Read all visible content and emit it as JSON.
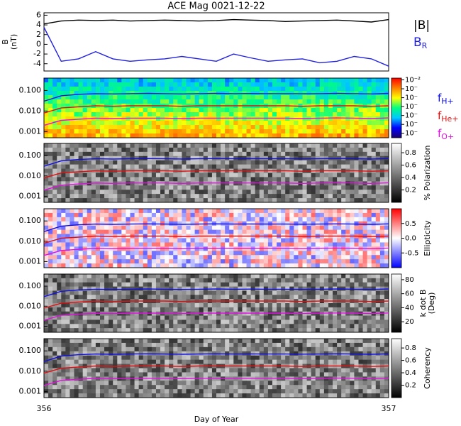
{
  "chart_data": [
    {
      "type": "line",
      "title": "ACE Mag 0021-12-22",
      "ylabel": "B\n(nT)",
      "x": [
        356,
        356.05,
        356.1,
        356.15,
        356.2,
        356.25,
        356.3,
        356.35,
        356.4,
        356.45,
        356.5,
        356.55,
        356.6,
        356.65,
        356.7,
        356.75,
        356.8,
        356.85,
        356.9,
        356.95,
        357
      ],
      "xlim": [
        356,
        357
      ],
      "ylim": [
        -5.5,
        6.5
      ],
      "yticks": [
        -4,
        -2,
        0,
        2,
        4,
        6
      ],
      "series": [
        {
          "name": "|B|",
          "color": "#000000",
          "values": [
            4.2,
            4.8,
            5.0,
            4.9,
            5.0,
            4.8,
            4.9,
            5.0,
            4.9,
            4.8,
            4.9,
            5.1,
            5.0,
            4.9,
            4.7,
            4.8,
            4.9,
            5.0,
            4.8,
            4.6,
            5.1
          ]
        },
        {
          "name": "B",
          "name_sub": "R",
          "color": "#2020e0",
          "values": [
            3.5,
            -3.5,
            -3.0,
            -1.5,
            -3.0,
            -3.5,
            -3.2,
            -3.0,
            -2.5,
            -3.0,
            -3.5,
            -2.0,
            -2.8,
            -3.5,
            -3.2,
            -3.0,
            -3.8,
            -3.5,
            -2.5,
            -3.0,
            -4.5
          ]
        }
      ]
    },
    {
      "type": "spectrogram",
      "log_y": true,
      "colormap": [
        "#1a0070",
        "#0000ff",
        "#00c8ff",
        "#00ff80",
        "#ffff00",
        "#ff8000",
        "#ff0000"
      ],
      "x": [
        356,
        356.05,
        356.1,
        356.15,
        356.2,
        356.25,
        356.3,
        356.35,
        356.4,
        356.45,
        356.5,
        356.55,
        356.6,
        356.65,
        356.7,
        356.75,
        356.8,
        356.85,
        356.9,
        356.95,
        357
      ],
      "xlim": [
        356,
        357
      ],
      "ylim": [
        0.0005,
        0.4
      ],
      "yticks": [
        {
          "value": 0.1,
          "label": "0.100"
        },
        {
          "value": 0.01,
          "label": "0.010"
        },
        {
          "value": 0.001,
          "label": "0.001"
        }
      ],
      "zlim": [
        -8.5,
        -1.8
      ],
      "zticks": [
        {
          "value": -2,
          "label": "10⁻²"
        },
        {
          "value": -3,
          "label": "10⁻"
        },
        {
          "value": -4,
          "label": "10⁻"
        },
        {
          "value": -5,
          "label": "10⁻"
        },
        {
          "value": -6,
          "label": "10⁻"
        },
        {
          "value": -7,
          "label": "10⁻"
        },
        {
          "value": -8,
          "label": "10⁻"
        }
      ],
      "legend": true,
      "series": [
        {
          "name": "f",
          "name_sub": "H+",
          "color": "#1010e0",
          "values": [
            0.03,
            0.055,
            0.065,
            0.07,
            0.068,
            0.07,
            0.072,
            0.07,
            0.068,
            0.07,
            0.072,
            0.07,
            0.071,
            0.07,
            0.07,
            0.069,
            0.07,
            0.072,
            0.07,
            0.068,
            0.072
          ]
        },
        {
          "name": "f",
          "name_sub": "He+",
          "color": "#e01010",
          "values": [
            0.008,
            0.014,
            0.016,
            0.018,
            0.017,
            0.018,
            0.018,
            0.018,
            0.017,
            0.018,
            0.018,
            0.018,
            0.018,
            0.018,
            0.018,
            0.017,
            0.018,
            0.018,
            0.018,
            0.017,
            0.018
          ]
        },
        {
          "name": "f",
          "name_sub": "O+",
          "color": "#e010e0",
          "values": [
            0.002,
            0.0035,
            0.004,
            0.0045,
            0.0043,
            0.0045,
            0.0045,
            0.0045,
            0.0043,
            0.0045,
            0.0045,
            0.0045,
            0.0045,
            0.0045,
            0.0045,
            0.0043,
            0.0045,
            0.0046,
            0.0045,
            0.0043,
            0.0046
          ]
        }
      ]
    },
    {
      "type": "spectrogram",
      "log_y": true,
      "colormap": [
        "#000000",
        "#ffffff"
      ],
      "zlabel": "% Polarization",
      "x": [
        356,
        356.05,
        356.1,
        356.15,
        356.2,
        356.25,
        356.3,
        356.35,
        356.4,
        356.45,
        356.5,
        356.55,
        356.6,
        356.65,
        356.7,
        356.75,
        356.8,
        356.85,
        356.9,
        356.95,
        357
      ],
      "xlim": [
        356,
        357
      ],
      "ylim": [
        0.0005,
        0.4
      ],
      "yticks": [
        {
          "value": 0.1,
          "label": "0.100"
        },
        {
          "value": 0.01,
          "label": "0.010"
        },
        {
          "value": 0.001,
          "label": "0.001"
        }
      ],
      "zlim": [
        0,
        0.95
      ],
      "zticks": [
        0.2,
        0.4,
        0.6,
        0.8
      ],
      "series": [
        {
          "color": "#1010e0",
          "values": [
            0.03,
            0.055,
            0.065,
            0.07,
            0.068,
            0.07,
            0.072,
            0.07,
            0.068,
            0.07,
            0.072,
            0.07,
            0.071,
            0.07,
            0.07,
            0.069,
            0.07,
            0.072,
            0.07,
            0.068,
            0.072
          ]
        },
        {
          "color": "#e01010",
          "values": [
            0.008,
            0.014,
            0.016,
            0.018,
            0.017,
            0.018,
            0.018,
            0.018,
            0.017,
            0.018,
            0.018,
            0.018,
            0.018,
            0.018,
            0.018,
            0.017,
            0.018,
            0.018,
            0.018,
            0.017,
            0.018
          ]
        },
        {
          "color": "#e010e0",
          "values": [
            0.002,
            0.0035,
            0.004,
            0.0045,
            0.0043,
            0.0045,
            0.0045,
            0.0045,
            0.0043,
            0.0045,
            0.0045,
            0.0045,
            0.0045,
            0.0045,
            0.0045,
            0.0043,
            0.0045,
            0.0046,
            0.0045,
            0.0043,
            0.0046
          ]
        }
      ]
    },
    {
      "type": "spectrogram",
      "log_y": true,
      "colormap": [
        "#0000ff",
        "#ffffff",
        "#ff0000"
      ],
      "zlabel": "Ellipticity",
      "x": [
        356,
        356.05,
        356.1,
        356.15,
        356.2,
        356.25,
        356.3,
        356.35,
        356.4,
        356.45,
        356.5,
        356.55,
        356.6,
        356.65,
        356.7,
        356.75,
        356.8,
        356.85,
        356.9,
        356.95,
        357
      ],
      "xlim": [
        356,
        357
      ],
      "ylim": [
        0.0005,
        0.4
      ],
      "yticks": [
        {
          "value": 0.1,
          "label": "0.100"
        },
        {
          "value": 0.01,
          "label": "0.010"
        },
        {
          "value": 0.001,
          "label": "0.001"
        }
      ],
      "zlim": [
        -1,
        1
      ],
      "zticks": [
        0.5,
        {
          "value": 0,
          "label": "0.0"
        },
        -0.5
      ],
      "series": [
        {
          "color": "#1010e0",
          "values": [
            0.03,
            0.055,
            0.065,
            0.07,
            0.068,
            0.07,
            0.072,
            0.07,
            0.068,
            0.07,
            0.072,
            0.07,
            0.071,
            0.07,
            0.07,
            0.069,
            0.07,
            0.072,
            0.07,
            0.068,
            0.072
          ]
        },
        {
          "color": "#e01010",
          "values": [
            0.008,
            0.014,
            0.016,
            0.018,
            0.017,
            0.018,
            0.018,
            0.018,
            0.017,
            0.018,
            0.018,
            0.018,
            0.018,
            0.018,
            0.018,
            0.017,
            0.018,
            0.018,
            0.018,
            0.017,
            0.018
          ]
        },
        {
          "color": "#e010e0",
          "values": [
            0.002,
            0.0035,
            0.004,
            0.0045,
            0.0043,
            0.0045,
            0.0045,
            0.0045,
            0.0043,
            0.0045,
            0.0045,
            0.0045,
            0.0045,
            0.0045,
            0.0045,
            0.0043,
            0.0045,
            0.0046,
            0.0045,
            0.0043,
            0.0046
          ]
        }
      ]
    },
    {
      "type": "spectrogram",
      "log_y": true,
      "colormap": [
        "#000000",
        "#ffffff"
      ],
      "zlabel": "k dot B\n(Deg)",
      "x": [
        356,
        356.05,
        356.1,
        356.15,
        356.2,
        356.25,
        356.3,
        356.35,
        356.4,
        356.45,
        356.5,
        356.55,
        356.6,
        356.65,
        356.7,
        356.75,
        356.8,
        356.85,
        356.9,
        356.95,
        357
      ],
      "xlim": [
        356,
        357
      ],
      "ylim": [
        0.0005,
        0.4
      ],
      "yticks": [
        {
          "value": 0.1,
          "label": "0.100"
        },
        {
          "value": 0.01,
          "label": "0.010"
        },
        {
          "value": 0.001,
          "label": "0.001"
        }
      ],
      "zlim": [
        5,
        88
      ],
      "zticks": [
        20,
        40,
        60,
        80
      ],
      "series": [
        {
          "color": "#1010e0",
          "values": [
            0.03,
            0.055,
            0.065,
            0.07,
            0.068,
            0.07,
            0.072,
            0.07,
            0.068,
            0.07,
            0.072,
            0.07,
            0.071,
            0.07,
            0.07,
            0.069,
            0.07,
            0.072,
            0.07,
            0.068,
            0.072
          ]
        },
        {
          "color": "#e01010",
          "values": [
            0.008,
            0.014,
            0.016,
            0.018,
            0.017,
            0.018,
            0.018,
            0.018,
            0.017,
            0.018,
            0.018,
            0.018,
            0.018,
            0.018,
            0.018,
            0.017,
            0.018,
            0.018,
            0.018,
            0.017,
            0.018
          ]
        },
        {
          "color": "#e010e0",
          "values": [
            0.002,
            0.0035,
            0.004,
            0.0045,
            0.0043,
            0.0045,
            0.0045,
            0.0045,
            0.0043,
            0.0045,
            0.0045,
            0.0045,
            0.0045,
            0.0045,
            0.0045,
            0.0043,
            0.0045,
            0.0046,
            0.0045,
            0.0043,
            0.0046
          ]
        }
      ]
    },
    {
      "type": "spectrogram",
      "log_y": true,
      "colormap": [
        "#000000",
        "#ffffff"
      ],
      "zlabel": "Coherency",
      "x": [
        356,
        356.05,
        356.1,
        356.15,
        356.2,
        356.25,
        356.3,
        356.35,
        356.4,
        356.45,
        356.5,
        356.55,
        356.6,
        356.65,
        356.7,
        356.75,
        356.8,
        356.85,
        356.9,
        356.95,
        357
      ],
      "xlim": [
        356,
        357
      ],
      "xticks": [
        356,
        357
      ],
      "xlabel": "Day of Year",
      "ylim": [
        0.0005,
        0.4
      ],
      "yticks": [
        {
          "value": 0.1,
          "label": "0.100"
        },
        {
          "value": 0.01,
          "label": "0.010"
        },
        {
          "value": 0.001,
          "label": "0.001"
        }
      ],
      "zlim": [
        0,
        0.95
      ],
      "zticks": [
        0.2,
        0.4,
        0.6,
        0.8
      ],
      "series": [
        {
          "color": "#1010e0",
          "values": [
            0.03,
            0.055,
            0.065,
            0.07,
            0.068,
            0.07,
            0.072,
            0.07,
            0.068,
            0.07,
            0.072,
            0.07,
            0.071,
            0.07,
            0.07,
            0.069,
            0.07,
            0.072,
            0.07,
            0.068,
            0.072
          ]
        },
        {
          "color": "#e01010",
          "values": [
            0.008,
            0.014,
            0.016,
            0.018,
            0.017,
            0.018,
            0.018,
            0.018,
            0.017,
            0.018,
            0.018,
            0.018,
            0.018,
            0.018,
            0.018,
            0.017,
            0.018,
            0.018,
            0.018,
            0.017,
            0.018
          ]
        },
        {
          "color": "#e010e0",
          "values": [
            0.002,
            0.0035,
            0.004,
            0.0045,
            0.0043,
            0.0045,
            0.0045,
            0.0045,
            0.0043,
            0.0045,
            0.0045,
            0.0045,
            0.0045,
            0.0045,
            0.0045,
            0.0043,
            0.0045,
            0.0046,
            0.0045,
            0.0043,
            0.0046
          ]
        }
      ]
    }
  ]
}
